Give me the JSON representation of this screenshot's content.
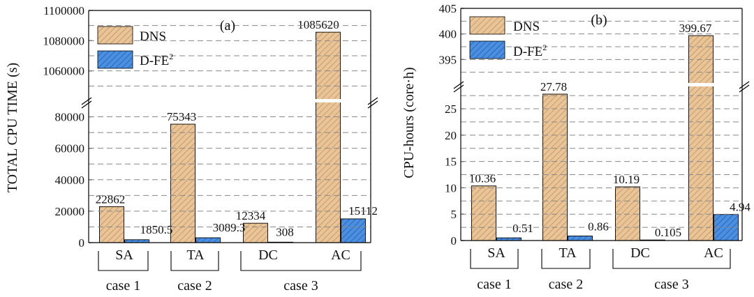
{
  "chart_data": [
    {
      "type": "bar",
      "panel_label": "(a)",
      "ylabel": "TOTAL CPU TIME (s)",
      "categories": [
        "SA",
        "TA",
        "DC",
        "AC"
      ],
      "groups": [
        {
          "label": "case 1",
          "categories": [
            "SA"
          ]
        },
        {
          "label": "case 2",
          "categories": [
            "TA"
          ]
        },
        {
          "label": "case 3",
          "categories": [
            "DC",
            "AC"
          ]
        }
      ],
      "series": [
        {
          "name": "DNS",
          "values": [
            22862,
            75343,
            12334,
            1085620
          ],
          "labels": [
            "22862",
            "75343",
            "12334",
            "1085620"
          ]
        },
        {
          "name": "D-FE",
          "name_sup": "2",
          "values": [
            1850.5,
            3089.3,
            308,
            15112
          ],
          "labels": [
            "1850.5",
            "3089.3",
            "308",
            "15112"
          ]
        }
      ],
      "ylim_lower": [
        0,
        90000
      ],
      "ylim_upper": [
        1040000,
        1100000
      ],
      "yticks_lower": [
        "0",
        "20000",
        "40000",
        "60000",
        "80000"
      ],
      "yticks_upper": [
        "1060000",
        "1080000",
        "1100000"
      ],
      "legend_position": "top-left",
      "colors": {
        "dns": "#e8c496",
        "dfe": "#4a8fe0"
      }
    },
    {
      "type": "bar",
      "panel_label": "(b)",
      "ylabel": "CPU-hours (core·h)",
      "categories": [
        "SA",
        "TA",
        "DC",
        "AC"
      ],
      "groups": [
        {
          "label": "case 1",
          "categories": [
            "SA"
          ]
        },
        {
          "label": "case 2",
          "categories": [
            "TA"
          ]
        },
        {
          "label": "case 3",
          "categories": [
            "DC",
            "AC"
          ]
        }
      ],
      "series": [
        {
          "name": "DNS",
          "values": [
            10.36,
            27.78,
            10.19,
            399.67
          ],
          "labels": [
            "10.36",
            "27.78",
            "10.19",
            "399.67"
          ]
        },
        {
          "name": "D-FE",
          "name_sup": "2",
          "values": [
            0.51,
            0.86,
            0.105,
            4.94
          ],
          "labels": [
            "0.51",
            "0.86",
            "0.105",
            "4.94"
          ]
        }
      ],
      "ylim_lower": [
        0,
        29.5
      ],
      "ylim_upper": [
        390,
        405
      ],
      "yticks_lower": [
        "0",
        "5",
        "10",
        "15",
        "20",
        "25"
      ],
      "yticks_upper": [
        "395",
        "400",
        "405"
      ],
      "legend_position": "top-left",
      "colors": {
        "dns": "#e8c496",
        "dfe": "#4a8fe0"
      }
    }
  ]
}
